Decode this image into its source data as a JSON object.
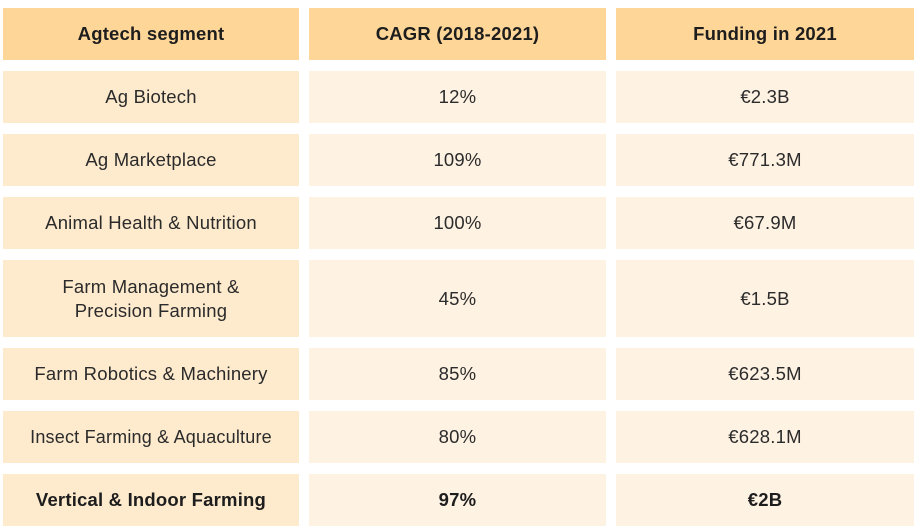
{
  "table": {
    "headers": [
      "Agtech segment",
      "CAGR (2018-2021)",
      "Funding in 2021"
    ],
    "rows": [
      {
        "segment": "Ag Biotech",
        "cagr": "12%",
        "funding": "€2.3B"
      },
      {
        "segment": "Ag Marketplace",
        "cagr": "109%",
        "funding": "€771.3M"
      },
      {
        "segment": "Animal Health & Nutrition",
        "cagr": "100%",
        "funding": "€67.9M"
      },
      {
        "segment": "Farm Management & Precision Farming",
        "cagr": "45%",
        "funding": "€1.5B"
      },
      {
        "segment": "Farm Robotics & Machinery",
        "cagr": "85%",
        "funding": "€623.5M"
      },
      {
        "segment": "Insect Farming & Aquaculture",
        "cagr": "80%",
        "funding": "€628.1M"
      },
      {
        "segment": "Vertical & Indoor Farming",
        "cagr": "97%",
        "funding": "€2B"
      }
    ]
  },
  "colors": {
    "header_bg": "#fed697",
    "first_col_bg": "#feebce",
    "cell_bg": "#fef2e3"
  }
}
